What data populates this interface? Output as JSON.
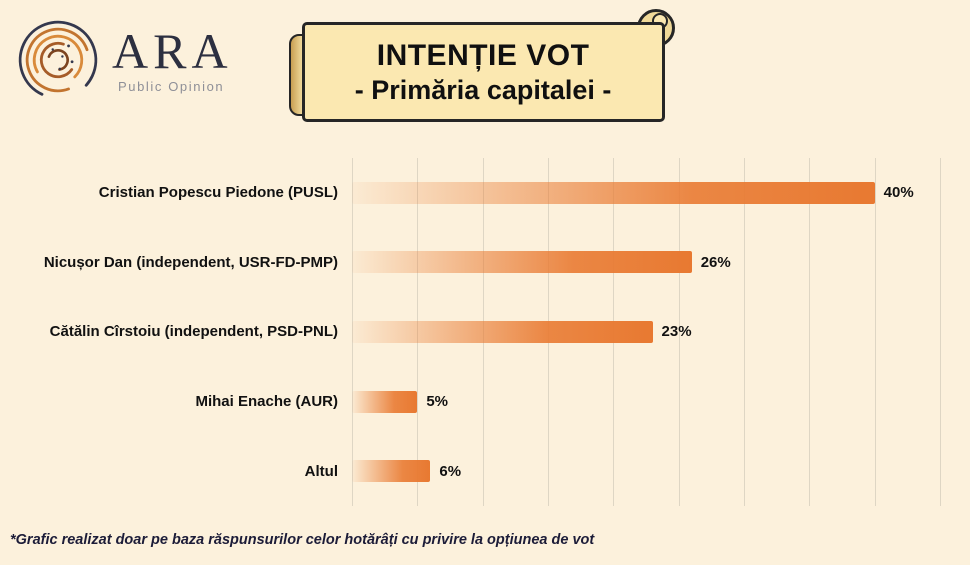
{
  "logo": {
    "name": "ARA",
    "subtitle": "Public Opinion"
  },
  "banner": {
    "line1": "INTENȚIE VOT",
    "line2": "- Primăria capitalei -"
  },
  "footnote": "*Grafic realizat doar pe baza răspunsurilor celor hotărâți cu privire la opțiunea de vot",
  "colors": {
    "background": "#fcf1dc",
    "bar_orange": "#e87931",
    "banner_fill": "#fbe8b1",
    "banner_border": "#262626",
    "gridline": "#ded6c4"
  },
  "chart_data": {
    "type": "bar",
    "orientation": "horizontal",
    "title": "INTENȚIE VOT - Primăria capitalei -",
    "categories": [
      "Cristian Popescu Piedone (PUSL)",
      "Nicușor Dan (independent, USR-FD-PMP)",
      "Cătălin Cîrstoiu (independent, PSD-PNL)",
      "Mihai Enache (AUR)",
      "Altul"
    ],
    "values": [
      40,
      26,
      23,
      5,
      6
    ],
    "value_labels": [
      "40%",
      "26%",
      "23%",
      "5%",
      "6%"
    ],
    "xlabel": "",
    "ylabel": "",
    "xlim": [
      0,
      45
    ],
    "gridline_step": 5,
    "grid": true,
    "legend": false,
    "note": "*Grafic realizat doar pe baza răspunsurilor celor hotărâți cu privire la opțiunea de vot"
  }
}
